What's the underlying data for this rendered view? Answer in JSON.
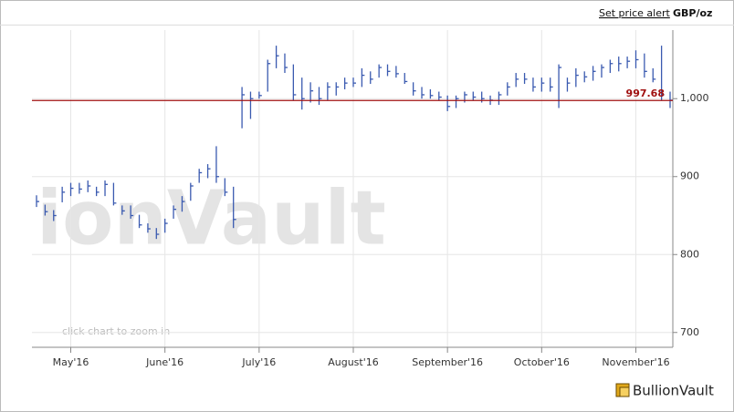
{
  "chart_data": {
    "type": "ohlc",
    "price_alert_link": "Set price alert",
    "unit": "GBP/oz",
    "watermark": "ionVault",
    "hint": "click chart to zoom in",
    "brand": "BullionVault",
    "color": "#3a5ab0",
    "grid": true,
    "ylim": [
      681,
      1088
    ],
    "yticks": [
      700,
      800,
      900,
      {
        "value": 1000,
        "label": "1,000"
      }
    ],
    "reference_line": {
      "value": 997.68,
      "color": "#a01010"
    },
    "categories": [
      null,
      null,
      null,
      null,
      "May'16",
      null,
      null,
      null,
      null,
      null,
      null,
      null,
      null,
      null,
      null,
      "June'16",
      null,
      null,
      null,
      null,
      null,
      null,
      null,
      null,
      null,
      null,
      "July'16",
      null,
      null,
      null,
      null,
      null,
      null,
      null,
      null,
      null,
      null,
      "August'16",
      null,
      null,
      null,
      null,
      null,
      null,
      null,
      null,
      null,
      null,
      "September'16",
      null,
      null,
      null,
      null,
      null,
      null,
      null,
      null,
      null,
      null,
      "October'16",
      null,
      null,
      null,
      null,
      null,
      null,
      null,
      null,
      null,
      null,
      "November'16",
      null,
      null,
      null,
      null
    ],
    "high": [
      876,
      864,
      857,
      887,
      892,
      892,
      895,
      887,
      895,
      892,
      863,
      863,
      851,
      840,
      834,
      846,
      863,
      875,
      892,
      910,
      916,
      939,
      898,
      887,
      1015,
      1009,
      1009,
      1050,
      1068,
      1058,
      1044,
      1027,
      1021,
      1015,
      1021,
      1021,
      1027,
      1027,
      1039,
      1035,
      1044,
      1044,
      1042,
      1033,
      1021,
      1015,
      1012,
      1009,
      1004,
      1004,
      1009,
      1009,
      1009,
      1004,
      1009,
      1021,
      1033,
      1033,
      1027,
      1027,
      1027,
      1044,
      1027,
      1039,
      1035,
      1042,
      1044,
      1050,
      1054,
      1054,
      1062,
      1058,
      1039,
      1068,
      1009
    ],
    "low": [
      861,
      850,
      843,
      867,
      875,
      878,
      880,
      875,
      875,
      863,
      851,
      846,
      834,
      828,
      820,
      828,
      846,
      855,
      869,
      892,
      898,
      892,
      875,
      834,
      962,
      974,
      1000,
      1009,
      1039,
      1033,
      998,
      986,
      995,
      992,
      998,
      1004,
      1012,
      1015,
      1015,
      1019,
      1027,
      1029,
      1027,
      1019,
      1004,
      1000,
      1000,
      998,
      984,
      988,
      995,
      998,
      995,
      992,
      992,
      1004,
      1015,
      1019,
      1009,
      1009,
      1009,
      988,
      1009,
      1015,
      1021,
      1023,
      1027,
      1033,
      1035,
      1039,
      1039,
      1027,
      1021,
      998,
      988
    ],
    "close": [
      868,
      855,
      850,
      880,
      885,
      884,
      888,
      880,
      890,
      866,
      856,
      850,
      838,
      833,
      826,
      840,
      858,
      868,
      888,
      905,
      910,
      900,
      880,
      845,
      1005,
      1000,
      1004,
      1045,
      1055,
      1040,
      1005,
      1000,
      1010,
      1000,
      1015,
      1015,
      1020,
      1020,
      1030,
      1025,
      1040,
      1035,
      1032,
      1022,
      1010,
      1005,
      1004,
      1002,
      990,
      1000,
      1005,
      1002,
      1000,
      998,
      1005,
      1015,
      1025,
      1025,
      1015,
      1020,
      1015,
      1040,
      1020,
      1030,
      1028,
      1035,
      1040,
      1045,
      1045,
      1048,
      1050,
      1035,
      1025,
      1005,
      998
    ]
  }
}
